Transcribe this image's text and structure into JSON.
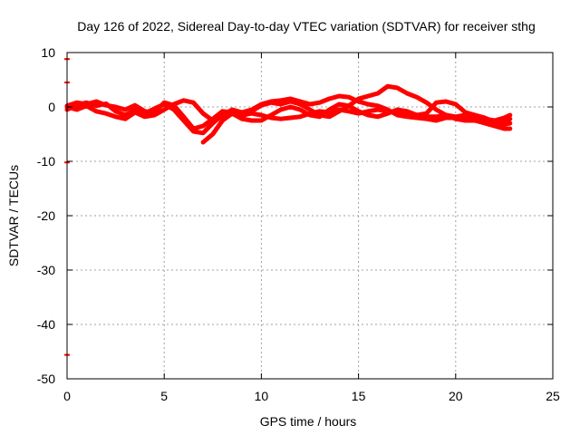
{
  "chart_data": {
    "type": "line",
    "title": "Day 126 of 2022, Sidereal Day-to-day VTEC variation (SDTVAR) for receiver sthg",
    "xlabel": "GPS time / hours",
    "ylabel": "SDTVAR / TECUs",
    "xlim": [
      0,
      25
    ],
    "ylim": [
      -50,
      10
    ],
    "xticks": [
      0,
      5,
      10,
      15,
      20,
      25
    ],
    "yticks": [
      10,
      0,
      -10,
      -20,
      -30,
      -40,
      -50
    ],
    "grid": true,
    "series_color": "#ff0000",
    "edge_markers": [
      8.8,
      4.5,
      -10.2,
      -45.6
    ],
    "series": [
      {
        "name": "trace-1",
        "x": [
          0,
          0.5,
          1,
          1.5,
          2,
          2.5,
          3,
          3.5,
          4,
          4.5,
          5,
          5.5,
          6,
          6.5,
          7,
          7.5,
          8,
          8.5,
          9,
          9.5,
          10,
          10.5,
          11,
          11.5,
          12,
          12.5,
          13,
          13.5,
          14,
          14.5,
          15,
          15.5,
          16,
          16.5,
          17,
          17.5,
          18,
          18.5,
          19,
          19.5,
          20,
          20.5,
          21,
          21.5,
          22,
          22.5,
          22.8
        ],
        "y": [
          -0.5,
          0.3,
          0.8,
          0.2,
          0.6,
          -0.8,
          -1.5,
          -0.5,
          -1.2,
          -0.3,
          0.5,
          -0.5,
          -2.5,
          -4.5,
          -4.8,
          -3,
          -1.5,
          -0.5,
          -1,
          -0.5,
          0.5,
          1,
          1.2,
          1.5,
          1,
          0.5,
          0.8,
          1.5,
          2,
          1.8,
          1,
          0.5,
          0.2,
          -0.5,
          -1.5,
          -1.8,
          -2,
          -2.2,
          -2.5,
          -2,
          -2,
          -2.2,
          -2.5,
          -3,
          -3.5,
          -4,
          -4
        ]
      },
      {
        "name": "trace-2",
        "x": [
          0,
          0.5,
          1,
          1.5,
          2,
          2.5,
          3,
          3.5,
          4,
          4.5,
          5,
          5.5,
          6,
          6.5,
          7,
          7.5,
          8,
          8.5,
          9,
          9.5,
          10,
          10.5,
          11,
          11.5,
          12,
          12.5,
          13,
          13.5,
          14,
          14.5,
          15,
          15.5,
          16,
          16.5,
          17,
          17.5,
          18,
          18.5,
          19,
          19.5,
          20,
          20.5,
          21,
          21.5,
          22,
          22.5,
          22.8
        ],
        "y": [
          0,
          -0.5,
          0.2,
          -0.8,
          -1.2,
          -1.8,
          -2.2,
          -1,
          -1.8,
          -1.5,
          -0.5,
          0.5,
          1.2,
          0.8,
          -1.2,
          -2.5,
          -1.8,
          -1.2,
          -2.2,
          -2.5,
          -2.5,
          -1.5,
          -0.5,
          0,
          -0.5,
          -1.5,
          -1.8,
          -0.5,
          0.5,
          0.2,
          -0.8,
          -1.5,
          -1.8,
          -1.2,
          -0.5,
          -0.8,
          -1.5,
          -1.2,
          0.8,
          1,
          0.5,
          -1,
          -1.5,
          -2,
          -2.8,
          -3.2,
          -3
        ]
      },
      {
        "name": "trace-3",
        "x": [
          7,
          7.5,
          8,
          8.5,
          9,
          9.5,
          10,
          10.5,
          11,
          11.5,
          12,
          12.5,
          13,
          13.5,
          14,
          14.5,
          15,
          15.5,
          16,
          16.5,
          17,
          17.5,
          18,
          18.5,
          19,
          19.5,
          20,
          20.5,
          21,
          21.5,
          22,
          22.5,
          22.8
        ],
        "y": [
          -6.5,
          -5,
          -2.5,
          -1.2,
          -1.8,
          -0.8,
          0.3,
          0.8,
          0.5,
          1,
          0.5,
          -0.5,
          -1.5,
          -1.8,
          -0.8,
          0.2,
          1.5,
          2,
          2.5,
          3.8,
          3.5,
          2.5,
          1.8,
          0.8,
          -0.5,
          -1.5,
          -2.2,
          -2.5,
          -2.5,
          -2.8,
          -2.5,
          -2,
          -1.5
        ]
      },
      {
        "name": "trace-4",
        "x": [
          0,
          0.5,
          1,
          1.5,
          2,
          2.5,
          3,
          3.5,
          4,
          4.5,
          5,
          5.5,
          6,
          6.5,
          7,
          7.5,
          8,
          8.5,
          9,
          9.5,
          10,
          10.5,
          11,
          11.5,
          12,
          12.5,
          13,
          13.5,
          14,
          14.5,
          15,
          15.5,
          16,
          16.5,
          17,
          17.5,
          18,
          18.5,
          19,
          19.5,
          20,
          20.5,
          21,
          21.5,
          22,
          22.5,
          22.8
        ],
        "y": [
          0.2,
          0.8,
          0.5,
          1,
          0.3,
          0,
          -0.5,
          0.3,
          -0.8,
          -1,
          0.8,
          0.3,
          -1.8,
          -4,
          -3.5,
          -2.2,
          -0.8,
          -1,
          -1.5,
          -1.2,
          -1.5,
          -2,
          -2.2,
          -2,
          -1.8,
          -1.2,
          -0.8,
          -1,
          -0.5,
          -0.8,
          -1.2,
          -0.8,
          -0.5,
          -0.8,
          -1,
          -1.2,
          -1.5,
          -1.8,
          -1.8,
          -1.5,
          -1.8,
          -1.5,
          -2,
          -2.2,
          -2.5,
          -2.8,
          -2.2
        ]
      }
    ]
  }
}
